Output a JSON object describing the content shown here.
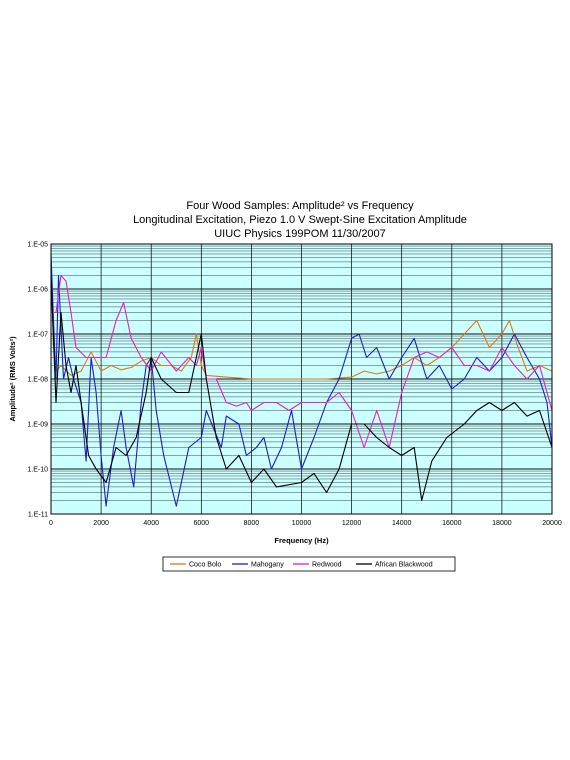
{
  "chart_data": {
    "type": "line",
    "title": [
      "Four Wood Samples: Amplitude² vs Frequency",
      "Longitudinal Excitation, Piezo 1.0 V Swept-Sine Excitation Amplitude",
      "UIUC Physics 199POM  11/30/2007"
    ],
    "xlabel": "Frequency (Hz)",
    "ylabel": "Amplitude² (RMS Volts²)",
    "xlim": [
      0,
      20000
    ],
    "ylim": [
      1e-11,
      1e-05
    ],
    "yscale": "log",
    "x_ticks": [
      "0",
      "2000",
      "4000",
      "6000",
      "8000",
      "10000",
      "12000",
      "14000",
      "16000",
      "18000",
      "20000"
    ],
    "y_ticks": [
      "1.E-11",
      "1.E-10",
      "1.E-09",
      "1.E-08",
      "1.E-07",
      "1.E-06",
      "1.E-05"
    ],
    "grid": true,
    "plot_background": "#ccffff",
    "legend_position": "bottom",
    "series": [
      {
        "name": "Coco Bolo",
        "color": "#e07a10",
        "points": [
          [
            0,
            3e-06
          ],
          [
            100,
            5e-08
          ],
          [
            200,
            1.5e-08
          ],
          [
            400,
            2e-08
          ],
          [
            800,
            1.2e-08
          ],
          [
            1200,
            1.5e-08
          ],
          [
            1600,
            4e-08
          ],
          [
            2000,
            1.5e-08
          ],
          [
            2400,
            2e-08
          ],
          [
            2800,
            1.6e-08
          ],
          [
            3200,
            1.8e-08
          ],
          [
            3600,
            2.5e-08
          ],
          [
            4000,
            3e-08
          ],
          [
            4400,
            2e-08
          ],
          [
            4800,
            2e-08
          ],
          [
            5200,
            1.5e-08
          ],
          [
            5600,
            3e-08
          ],
          [
            5800,
            1e-07
          ],
          [
            6000,
            2e-08
          ],
          [
            6200,
            1.2e-08
          ],
          [
            7000,
            1.1e-08
          ],
          [
            8000,
            1e-08
          ],
          [
            9000,
            1e-08
          ],
          [
            10000,
            1e-08
          ],
          [
            11000,
            1e-08
          ],
          [
            12000,
            1.1e-08
          ],
          [
            12500,
            1.5e-08
          ],
          [
            13000,
            1.3e-08
          ],
          [
            13500,
            1.5e-08
          ],
          [
            14000,
            2e-08
          ],
          [
            14500,
            3e-08
          ],
          [
            15000,
            2e-08
          ],
          [
            15500,
            3e-08
          ],
          [
            16000,
            5e-08
          ],
          [
            16500,
            1e-07
          ],
          [
            17000,
            2e-07
          ],
          [
            17500,
            5e-08
          ],
          [
            18000,
            1e-07
          ],
          [
            18300,
            2e-07
          ],
          [
            18600,
            6e-08
          ],
          [
            19000,
            1.5e-08
          ],
          [
            19500,
            2e-08
          ],
          [
            20000,
            1.5e-08
          ]
        ]
      },
      {
        "name": "Mahogany",
        "color": "#1e1ec8",
        "points": [
          [
            0,
            6e-06
          ],
          [
            100,
            2e-07
          ],
          [
            200,
            1e-08
          ],
          [
            300,
            2e-06
          ],
          [
            500,
            1e-08
          ],
          [
            700,
            3e-08
          ],
          [
            900,
            1e-08
          ],
          [
            1200,
            3e-09
          ],
          [
            1400,
            1.5e-10
          ],
          [
            1600,
            3e-08
          ],
          [
            1800,
            5e-09
          ],
          [
            2000,
            2e-10
          ],
          [
            2200,
            1.5e-11
          ],
          [
            2500,
            3e-10
          ],
          [
            2800,
            2e-09
          ],
          [
            3000,
            3e-10
          ],
          [
            3300,
            4e-11
          ],
          [
            3600,
            3e-09
          ],
          [
            3800,
            2e-08
          ],
          [
            4000,
            3e-08
          ],
          [
            4200,
            2e-09
          ],
          [
            4500,
            2e-10
          ],
          [
            5000,
            1.5e-11
          ],
          [
            5500,
            3e-10
          ],
          [
            6000,
            5e-10
          ],
          [
            6200,
            2e-09
          ],
          [
            6800,
            3e-10
          ],
          [
            7000,
            1.5e-09
          ],
          [
            7500,
            1e-09
          ],
          [
            7800,
            2e-10
          ],
          [
            8200,
            3e-10
          ],
          [
            8500,
            5e-10
          ],
          [
            8800,
            1e-10
          ],
          [
            9200,
            3e-10
          ],
          [
            9600,
            2e-09
          ],
          [
            10000,
            1e-10
          ],
          [
            10500,
            5e-10
          ],
          [
            11000,
            3e-09
          ],
          [
            11500,
            1e-08
          ],
          [
            12000,
            8e-08
          ],
          [
            12300,
            1e-07
          ],
          [
            12600,
            3e-08
          ],
          [
            13000,
            5e-08
          ],
          [
            13500,
            1e-08
          ],
          [
            14000,
            3e-08
          ],
          [
            14500,
            8e-08
          ],
          [
            15000,
            1e-08
          ],
          [
            15500,
            2e-08
          ],
          [
            16000,
            6e-09
          ],
          [
            16500,
            1e-08
          ],
          [
            17000,
            3e-08
          ],
          [
            17500,
            1.5e-08
          ],
          [
            18000,
            3e-08
          ],
          [
            18500,
            1e-07
          ],
          [
            19000,
            3e-08
          ],
          [
            19500,
            1e-08
          ],
          [
            19800,
            3e-09
          ],
          [
            20000,
            3e-10
          ]
        ]
      },
      {
        "name": "Redwood",
        "color": "#e020c8",
        "points": [
          [
            0,
            3e-07
          ],
          [
            200,
            3e-07
          ],
          [
            400,
            2e-06
          ],
          [
            600,
            1.5e-06
          ],
          [
            800,
            3e-07
          ],
          [
            1000,
            5e-08
          ],
          [
            1400,
            3e-08
          ],
          [
            1800,
            3e-08
          ],
          [
            2200,
            3e-08
          ],
          [
            2600,
            2e-07
          ],
          [
            2900,
            5e-07
          ],
          [
            3200,
            8e-08
          ],
          [
            3600,
            3e-08
          ],
          [
            4000,
            1.5e-08
          ],
          [
            4400,
            4e-08
          ],
          [
            5000,
            1.5e-08
          ],
          [
            5500,
            3e-08
          ],
          [
            5800,
            2e-08
          ],
          [
            6000,
            5e-08
          ],
          [
            6200,
            1e-08
          ],
          [
            6600,
            1e-08
          ],
          [
            7000,
            3e-09
          ],
          [
            7400,
            2.5e-09
          ],
          [
            7800,
            3e-09
          ],
          [
            8000,
            2e-09
          ],
          [
            8500,
            3e-09
          ],
          [
            9000,
            3e-09
          ],
          [
            9500,
            2e-09
          ],
          [
            10000,
            3e-09
          ],
          [
            10500,
            3e-09
          ],
          [
            11000,
            3e-09
          ],
          [
            11500,
            5e-09
          ],
          [
            12000,
            2e-09
          ],
          [
            12500,
            3e-10
          ],
          [
            13000,
            2e-09
          ],
          [
            13500,
            3e-10
          ],
          [
            14000,
            5e-09
          ],
          [
            14500,
            3e-08
          ],
          [
            15000,
            4e-08
          ],
          [
            15500,
            3e-08
          ],
          [
            16000,
            5e-08
          ],
          [
            16500,
            2e-08
          ],
          [
            17000,
            2e-08
          ],
          [
            17500,
            1.5e-08
          ],
          [
            18000,
            5e-08
          ],
          [
            18500,
            2e-08
          ],
          [
            19000,
            1e-08
          ],
          [
            19500,
            2e-08
          ],
          [
            20000,
            2e-09
          ]
        ]
      },
      {
        "name": "African Blackwood",
        "color": "#000000",
        "points": [
          [
            0,
            2e-06
          ],
          [
            200,
            3e-09
          ],
          [
            400,
            3e-07
          ],
          [
            600,
            2e-08
          ],
          [
            800,
            5e-09
          ],
          [
            1000,
            2e-08
          ],
          [
            1200,
            3e-09
          ],
          [
            1500,
            2e-10
          ],
          [
            1800,
            1e-10
          ],
          [
            2200,
            5e-11
          ],
          [
            2600,
            3e-10
          ],
          [
            3000,
            2e-10
          ],
          [
            3400,
            5e-10
          ],
          [
            3800,
            5e-09
          ],
          [
            4000,
            3e-08
          ],
          [
            4400,
            1e-08
          ],
          [
            5000,
            5e-09
          ],
          [
            5500,
            5e-09
          ],
          [
            6000,
            1e-07
          ],
          [
            6200,
            1e-08
          ],
          [
            6600,
            5e-10
          ],
          [
            7000,
            1e-10
          ],
          [
            7500,
            2e-10
          ],
          [
            8000,
            5e-11
          ],
          [
            8500,
            1e-10
          ],
          [
            9000,
            4e-11
          ],
          [
            10000,
            5e-11
          ],
          [
            10500,
            8e-11
          ],
          [
            11000,
            3e-11
          ],
          [
            11500,
            1e-10
          ],
          [
            12000,
            1e-09
          ],
          [
            12500,
            1e-09
          ],
          [
            13000,
            5e-10
          ],
          [
            13500,
            3e-10
          ],
          [
            14000,
            2e-10
          ],
          [
            14500,
            3e-10
          ],
          [
            14800,
            2e-11
          ],
          [
            15200,
            1.5e-10
          ],
          [
            15800,
            5e-10
          ],
          [
            16500,
            1e-09
          ],
          [
            17000,
            2e-09
          ],
          [
            17500,
            3e-09
          ],
          [
            18000,
            2e-09
          ],
          [
            18500,
            3e-09
          ],
          [
            19000,
            1.5e-09
          ],
          [
            19500,
            2e-09
          ],
          [
            20000,
            3e-10
          ]
        ]
      }
    ]
  }
}
